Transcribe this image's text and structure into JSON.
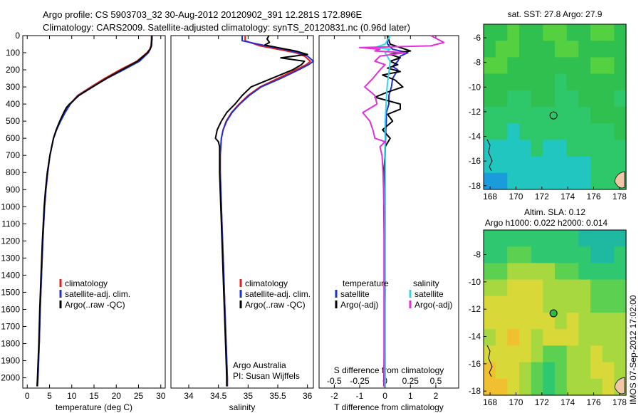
{
  "header": {
    "line1": "Argo profile: CS 5903703_32 30-Aug-2012 20120902_391 12.281S 172.896E",
    "line2": "Climatology: CARS2009. Satellite-adjusted climatology: synTS_20120831.nc (0.96d later)"
  },
  "colors": {
    "climatology": "#e0201c",
    "satellite": "#1f2fd4",
    "argo": "#000000",
    "salinity_satellite": "#2fd8e8",
    "salinity_argo": "#e030d8"
  },
  "side_text": "IMOS 07-Sep-2012 17:02:00",
  "credit": {
    "line1": "Argo Australia",
    "line2": "PI: Susan Wijffels"
  },
  "chart_data": [
    {
      "type": "line",
      "title": "",
      "xlabel": "temperature (deg C)",
      "ylabel": "",
      "xlim": [
        -1,
        31
      ],
      "ylim": [
        2060,
        0
      ],
      "xticks": [
        "0",
        "5",
        "10",
        "15",
        "20",
        "25",
        "30"
      ],
      "yticks": [
        "0",
        "100",
        "200",
        "300",
        "400",
        "500",
        "600",
        "700",
        "800",
        "900",
        "1000",
        "1100",
        "1200",
        "1300",
        "1400",
        "1500",
        "1600",
        "1700",
        "1800",
        "1900",
        "2000"
      ],
      "legend": [
        "climatology",
        "satellite-adj. clim.",
        "Argo(..raw -QC)"
      ],
      "legend_position": "bottom-center",
      "series": [
        {
          "name": "climatology",
          "depth": [
            0,
            20,
            60,
            80,
            100,
            150,
            200,
            250,
            300,
            350,
            400,
            450,
            500,
            550,
            600,
            700,
            800,
            900,
            1000,
            1200,
            1400,
            1600,
            1800,
            2000,
            2050
          ],
          "values": [
            27.9,
            27.9,
            27.8,
            27.5,
            26.9,
            24.6,
            20.8,
            17.4,
            14.3,
            11.3,
            9.6,
            8.4,
            7.4,
            6.6,
            5.9,
            5.1,
            4.6,
            4.2,
            3.9,
            3.5,
            3.2,
            2.9,
            2.7,
            2.4,
            2.3
          ]
        },
        {
          "name": "satellite-adj. clim.",
          "depth": [
            0,
            20,
            60,
            80,
            100,
            150,
            200,
            250,
            300,
            350,
            400,
            450,
            500,
            550,
            600,
            700,
            800,
            900,
            1000,
            1200,
            1400,
            1600,
            1800,
            2000,
            2050
          ],
          "values": [
            28.0,
            28.0,
            27.9,
            27.6,
            27.2,
            25.2,
            21.6,
            17.9,
            14.6,
            11.5,
            9.7,
            8.5,
            7.5,
            6.6,
            5.9,
            5.1,
            4.6,
            4.2,
            3.9,
            3.5,
            3.2,
            2.9,
            2.7,
            2.4,
            2.3
          ]
        },
        {
          "name": "Argo(..raw -QC)",
          "depth": [
            0,
            20,
            60,
            80,
            100,
            150,
            200,
            250,
            300,
            350,
            400,
            420,
            450,
            500,
            550,
            600,
            700,
            800,
            900,
            1000,
            1200,
            1400,
            1600,
            1800,
            2000,
            2050
          ],
          "values": [
            28.0,
            28.0,
            27.9,
            27.6,
            27.0,
            24.8,
            21.2,
            17.8,
            14.7,
            11.6,
            9.5,
            8.8,
            8.2,
            7.3,
            6.5,
            5.9,
            5.1,
            4.5,
            4.1,
            3.8,
            3.4,
            3.1,
            2.8,
            2.6,
            2.3,
            2.2
          ]
        }
      ]
    },
    {
      "type": "line",
      "title": "",
      "xlabel": "salinity",
      "ylabel": "",
      "xlim": [
        33.7,
        36.1
      ],
      "ylim": [
        2060,
        0
      ],
      "xticks": [
        "34",
        "34.5",
        "35",
        "35.5",
        "36"
      ],
      "legend": [
        "climatology",
        "satellite-adj. clim.",
        "Argo(..raw -QC)"
      ],
      "legend_position": "bottom-right",
      "series": [
        {
          "name": "climatology",
          "depth": [
            0,
            30,
            60,
            80,
            100,
            120,
            150,
            170,
            200,
            250,
            300,
            350,
            400,
            450,
            500,
            550,
            600,
            650,
            700,
            800,
            1000,
            1200,
            1400,
            1600,
            1800,
            2000,
            2050
          ],
          "values": [
            34.95,
            34.95,
            35.2,
            35.5,
            35.8,
            35.95,
            36.05,
            35.98,
            35.8,
            35.5,
            35.2,
            35.0,
            34.85,
            34.72,
            34.63,
            34.58,
            34.55,
            34.54,
            34.53,
            34.53,
            34.55,
            34.57,
            34.59,
            34.61,
            34.63,
            34.65,
            34.65
          ]
        },
        {
          "name": "satellite-adj. clim.",
          "depth": [
            0,
            30,
            60,
            80,
            100,
            120,
            150,
            170,
            200,
            250,
            300,
            350,
            400,
            450,
            500,
            550,
            600,
            650,
            700,
            800,
            1000,
            1200,
            1400,
            1600,
            1800,
            2000,
            2050
          ],
          "values": [
            34.9,
            34.9,
            35.3,
            35.6,
            35.85,
            36.0,
            36.1,
            36.02,
            35.85,
            35.55,
            35.22,
            35.02,
            34.86,
            34.73,
            34.64,
            34.58,
            34.55,
            34.54,
            34.53,
            34.53,
            34.55,
            34.57,
            34.59,
            34.61,
            34.63,
            34.65,
            34.65
          ]
        },
        {
          "name": "Argo(..raw -QC)",
          "depth": [
            0,
            20,
            40,
            55,
            70,
            90,
            110,
            130,
            150,
            170,
            200,
            250,
            300,
            350,
            400,
            450,
            500,
            550,
            600,
            620,
            650,
            700,
            800,
            1000,
            1200,
            1400,
            1600,
            1800,
            2000,
            2050
          ],
          "values": [
            35.35,
            35.32,
            35.36,
            35.28,
            35.5,
            35.8,
            36.0,
            35.55,
            35.95,
            35.9,
            35.75,
            35.4,
            35.05,
            34.9,
            34.78,
            34.64,
            34.55,
            34.48,
            34.45,
            34.5,
            34.52,
            34.52,
            34.52,
            34.54,
            34.56,
            34.58,
            34.6,
            34.62,
            34.64,
            34.64
          ]
        }
      ]
    },
    {
      "type": "line",
      "title": "",
      "xlabel": "T difference from climatology",
      "x2label": "S difference from climatology",
      "xlim": [
        -2.6,
        2.9
      ],
      "ylim": [
        2060,
        0
      ],
      "xticks": [
        "-2",
        "-1",
        "0",
        "1",
        "2"
      ],
      "x2lim": [
        -0.65,
        0.725
      ],
      "x2ticks": [
        "-0.5",
        "-0.25",
        "0",
        "0.25",
        "0.5"
      ],
      "legend_left_title": "temperature",
      "legend_right_title": "salinity",
      "legend_left": [
        "satellite",
        "Argo(-adj)"
      ],
      "legend_right": [
        "satellite",
        "Argo(-adj)"
      ],
      "legend_position": "bottom",
      "series": [
        {
          "name": "temperature satellite",
          "depth": [
            0,
            50,
            80,
            100,
            120,
            150,
            180,
            200,
            250,
            300,
            350,
            400,
            450,
            500,
            550,
            600,
            700,
            800,
            1000,
            1500,
            2050
          ],
          "values": [
            0.1,
            0.1,
            0.3,
            0.9,
            0.6,
            0.5,
            0.3,
            0.5,
            0.3,
            0.25,
            0.15,
            0.15,
            0.05,
            0.05,
            0.03,
            0.02,
            0.0,
            0.0,
            0.0,
            0.0,
            0.0
          ]
        },
        {
          "name": "temperature Argo(-adj)",
          "depth": [
            0,
            50,
            70,
            90,
            100,
            110,
            130,
            150,
            170,
            190,
            210,
            230,
            260,
            300,
            330,
            360,
            400,
            430,
            460,
            500,
            550,
            600,
            650,
            700,
            800,
            1000,
            1300,
            1500,
            2050
          ],
          "values": [
            0.1,
            0.2,
            0.6,
            1.0,
            0.5,
            0.2,
            0.6,
            0.2,
            0.5,
            0.1,
            0.6,
            -0.1,
            0.4,
            0.7,
            0.1,
            -0.4,
            0.6,
            0.6,
            0.1,
            0.3,
            -0.1,
            0.2,
            0.0,
            0.0,
            -0.05,
            -0.05,
            -0.02,
            0.0,
            -0.05
          ]
        },
        {
          "name": "salinity satellite",
          "depth": [
            0,
            50,
            70,
            80,
            100,
            150,
            200,
            250,
            300,
            400,
            500,
            600,
            700,
            800,
            1000,
            1500,
            2050
          ],
          "values": [
            0.05,
            0.0,
            -0.1,
            0.05,
            0.0,
            0.05,
            0.04,
            0.03,
            0.02,
            0.01,
            0.0,
            0.0,
            0.0,
            0.0,
            0.0,
            0.0,
            0.0
          ]
        },
        {
          "name": "salinity Argo(-adj)",
          "depth": [
            0,
            40,
            60,
            70,
            80,
            90,
            100,
            120,
            150,
            170,
            200,
            250,
            300,
            350,
            400,
            450,
            500,
            550,
            600,
            620,
            650,
            700,
            800,
            1000,
            1200,
            1500,
            1800,
            2050
          ],
          "values": [
            0.45,
            0.58,
            0.45,
            -0.25,
            -0.05,
            -0.1,
            0.2,
            -0.05,
            -0.1,
            0.0,
            -0.05,
            -0.12,
            -0.2,
            -0.1,
            -0.08,
            -0.22,
            -0.15,
            -0.12,
            -0.1,
            0.0,
            -0.05,
            -0.03,
            -0.02,
            -0.01,
            -0.01,
            -0.01,
            -0.01,
            -0.01
          ]
        }
      ]
    },
    {
      "type": "heatmap",
      "title": "sat. SST: 27.8 Argo: 27.9",
      "xticks": [
        "168",
        "170",
        "172",
        "174",
        "176",
        "178"
      ],
      "yticks": [
        "-6",
        "-8",
        "-10",
        "-12",
        "-14",
        "-16",
        "-18"
      ],
      "xlim": [
        167.5,
        178.5
      ],
      "ylim": [
        -18.3,
        -4.9
      ],
      "marker": {
        "lon": 172.9,
        "lat": -12.3,
        "style": "hollow circle"
      },
      "palette": [
        "#1a9bdc",
        "#21c6c0",
        "#2ec86a",
        "#30c050",
        "#55d040",
        "#8ed838"
      ],
      "grid": [
        [
          3,
          3,
          4,
          3,
          3,
          4,
          4,
          3,
          3,
          4,
          4,
          3
        ],
        [
          3,
          4,
          4,
          3,
          3,
          3,
          4,
          4,
          3,
          3,
          3,
          3
        ],
        [
          4,
          4,
          3,
          3,
          3,
          3,
          3,
          3,
          3,
          4,
          4,
          3
        ],
        [
          3,
          3,
          3,
          3,
          3,
          3,
          2,
          3,
          3,
          3,
          3,
          3
        ],
        [
          3,
          3,
          2,
          2,
          3,
          3,
          2,
          2,
          3,
          3,
          3,
          2
        ],
        [
          2,
          2,
          2,
          2,
          2,
          2,
          2,
          2,
          2,
          3,
          3,
          3
        ],
        [
          2,
          2,
          1,
          2,
          2,
          2,
          2,
          2,
          2,
          2,
          2,
          3
        ],
        [
          1,
          1,
          1,
          1,
          2,
          1,
          1,
          2,
          2,
          2,
          2,
          2
        ],
        [
          1,
          1,
          1,
          1,
          1,
          1,
          1,
          1,
          1,
          2,
          2,
          2
        ],
        [
          0,
          0,
          1,
          1,
          1,
          1,
          1,
          1,
          1,
          2,
          2,
          2
        ]
      ]
    },
    {
      "type": "heatmap",
      "title": "Altim. SLA: 0.12",
      "subtitle": "Argo h1000: 0.022 h2000: 0.014",
      "xticks": [
        "168",
        "170",
        "172",
        "174",
        "176",
        "178"
      ],
      "yticks": [
        "-8",
        "-10",
        "-12",
        "-14",
        "-16",
        "-18"
      ],
      "xlim": [
        167.5,
        178.5
      ],
      "ylim": [
        -18.3,
        -6.2
      ],
      "marker": {
        "lon": 172.9,
        "lat": -12.3,
        "style": "filled circle"
      },
      "palette": [
        "#1fb8a0",
        "#2fc870",
        "#5cd050",
        "#a8d840",
        "#d8d838",
        "#f0c030"
      ],
      "grid": [
        [
          1,
          1,
          1,
          1,
          1,
          1,
          1,
          1,
          0,
          0,
          0,
          0
        ],
        [
          1,
          1,
          2,
          2,
          1,
          1,
          1,
          1,
          1,
          0,
          0,
          1
        ],
        [
          2,
          2,
          3,
          3,
          3,
          3,
          2,
          2,
          1,
          1,
          1,
          1
        ],
        [
          3,
          3,
          4,
          4,
          4,
          3,
          3,
          3,
          3,
          2,
          2,
          2
        ],
        [
          4,
          4,
          4,
          4,
          4,
          3,
          3,
          3,
          3,
          2,
          2,
          2
        ],
        [
          4,
          4,
          4,
          4,
          4,
          4,
          3,
          4,
          3,
          3,
          3,
          3
        ],
        [
          3,
          4,
          5,
          4,
          3,
          4,
          4,
          4,
          3,
          3,
          3,
          3
        ],
        [
          4,
          4,
          4,
          4,
          3,
          2,
          2,
          3,
          3,
          4,
          3,
          3
        ],
        [
          5,
          4,
          4,
          3,
          2,
          1,
          2,
          3,
          3,
          4,
          4,
          3
        ],
        [
          5,
          5,
          4,
          3,
          2,
          1,
          2,
          3,
          3,
          3,
          4,
          3
        ]
      ]
    }
  ]
}
